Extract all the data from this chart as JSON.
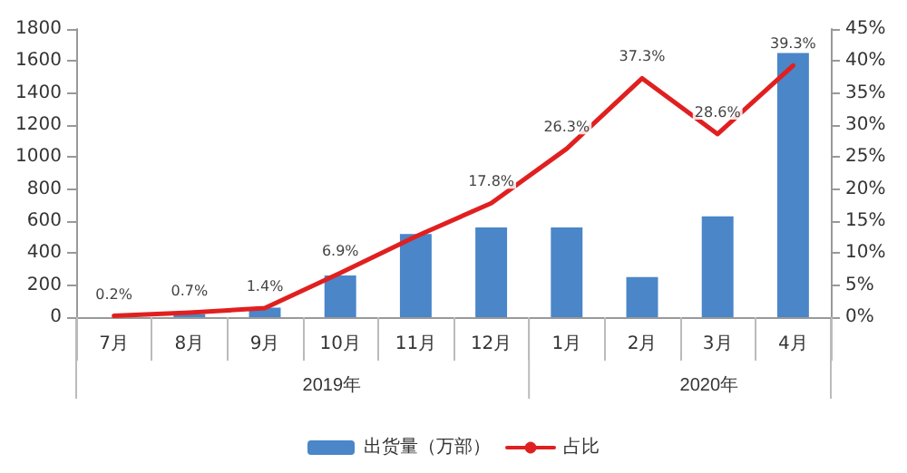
{
  "chart_data": {
    "type": "bar",
    "categories": [
      "7月",
      "8月",
      "9月",
      "10月",
      "11月",
      "12月",
      "1月",
      "2月",
      "3月",
      "4月"
    ],
    "series": [
      {
        "name": "出货量（万部）",
        "color": "#4a86c8",
        "values": [
          null,
          20,
          60,
          260,
          520,
          560,
          560,
          250,
          630,
          1650
        ]
      },
      {
        "name": "占比",
        "type": "line",
        "axis": "y2",
        "color": "#e02020",
        "values": [
          0.2,
          0.7,
          1.4,
          6.9,
          12.6,
          17.8,
          26.3,
          37.3,
          28.6,
          39.3
        ],
        "value_labels": [
          "0.2%",
          "0.7%",
          "1.4%",
          "6.9%",
          null,
          "17.8%",
          "26.3%",
          "37.3%",
          "28.6%",
          "39.3%"
        ]
      }
    ],
    "ylim": [
      0,
      1800
    ],
    "yticks": [
      0,
      200,
      400,
      600,
      800,
      1000,
      1200,
      1400,
      1600,
      1800
    ],
    "y2lim": [
      0,
      45
    ],
    "y2ticks": [
      {
        "value": 0,
        "label": "0%"
      },
      {
        "value": 5,
        "label": "5%"
      },
      {
        "value": 10,
        "label": "10%"
      },
      {
        "value": 15,
        "label": "15%"
      },
      {
        "value": 20,
        "label": "20%"
      },
      {
        "value": 25,
        "label": "25%"
      },
      {
        "value": 30,
        "label": "30%"
      },
      {
        "value": 35,
        "label": "35%"
      },
      {
        "value": 40,
        "label": "40%"
      },
      {
        "value": 45,
        "label": "45%"
      }
    ],
    "annotations": [
      "2019年",
      "2020年"
    ],
    "grid": false,
    "legend": "bottom",
    "marker": "none",
    "line_style": "solid"
  }
}
